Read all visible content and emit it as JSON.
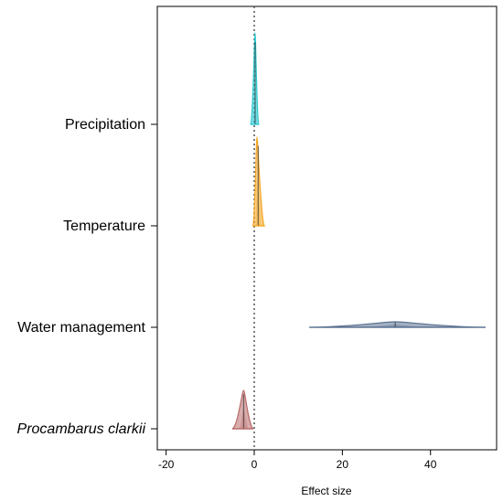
{
  "chart_data": {
    "type": "density_ridge",
    "title": "",
    "xlabel": "Effect size",
    "ylabel": "",
    "xlim": [
      -22,
      55
    ],
    "x_ticks": [
      -20,
      0,
      20,
      40
    ],
    "reference_line": {
      "x": 0,
      "style": "dotted"
    },
    "grid": false,
    "legend": "none",
    "series": [
      {
        "name": "Precipitation",
        "italic": false,
        "color": "#2bc8d0",
        "min": -0.8,
        "max": 1.0,
        "median": 0.2,
        "peak": 0.2,
        "lower_q": -0.3,
        "upper_q": 0.6
      },
      {
        "name": "Temperature",
        "italic": false,
        "color": "#f5a623",
        "min": -0.3,
        "max": 2.3,
        "median": 0.9,
        "peak": 0.6,
        "lower_q": 0.3,
        "upper_q": 1.6
      },
      {
        "name": "Water management",
        "italic": false,
        "color": "#5a7191",
        "min": 12.5,
        "max": 52.5,
        "median": 32.0,
        "peak": 32.0,
        "lower_q": 26.0,
        "upper_q": 38.0
      },
      {
        "name": "Procambarus clarkii",
        "italic": true,
        "color": "#b96a6a",
        "min": -5.0,
        "max": -0.2,
        "median": -2.4,
        "peak": -2.4,
        "lower_q": -3.3,
        "upper_q": -1.4
      }
    ]
  }
}
